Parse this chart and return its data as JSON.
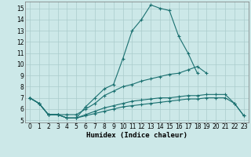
{
  "xlabel": "Humidex (Indice chaleur)",
  "bg_color": "#cce8e8",
  "grid_color": "#aacccc",
  "line_color": "#1a7070",
  "xlim": [
    -0.5,
    23.5
  ],
  "ylim": [
    4.8,
    15.6
  ],
  "yticks": [
    5,
    6,
    7,
    8,
    9,
    10,
    11,
    12,
    13,
    14,
    15
  ],
  "xticks": [
    0,
    1,
    2,
    3,
    4,
    5,
    6,
    7,
    8,
    9,
    10,
    11,
    12,
    13,
    14,
    15,
    16,
    17,
    18,
    19,
    20,
    21,
    22,
    23
  ],
  "line1": {
    "x": [
      0,
      1,
      2,
      3,
      4,
      5,
      6,
      7,
      8,
      9,
      10,
      11,
      12,
      13,
      14,
      15,
      16,
      17,
      18
    ],
    "y": [
      7.0,
      6.5,
      5.5,
      5.5,
      5.2,
      5.2,
      6.2,
      7.0,
      7.8,
      8.2,
      10.5,
      13.0,
      14.0,
      15.3,
      15.0,
      14.8,
      12.5,
      11.0,
      9.2
    ]
  },
  "line2": {
    "x": [
      0,
      1,
      2,
      3,
      4,
      5,
      6,
      7,
      8,
      9,
      10,
      11,
      12,
      13,
      14,
      15,
      16,
      17,
      18,
      19
    ],
    "y": [
      7.0,
      6.5,
      5.5,
      5.5,
      5.5,
      5.5,
      6.0,
      6.5,
      7.2,
      7.6,
      8.0,
      8.2,
      8.5,
      8.7,
      8.9,
      9.1,
      9.2,
      9.5,
      9.8,
      9.2
    ]
  },
  "line3": {
    "x": [
      0,
      1,
      2,
      3,
      4,
      5,
      6,
      7,
      8,
      9,
      10,
      11,
      12,
      13,
      14,
      15,
      16,
      17,
      18,
      19,
      20,
      21,
      22,
      23
    ],
    "y": [
      7.0,
      6.5,
      5.5,
      5.5,
      5.2,
      5.2,
      5.5,
      5.8,
      6.1,
      6.3,
      6.5,
      6.7,
      6.8,
      6.9,
      7.0,
      7.0,
      7.1,
      7.2,
      7.2,
      7.3,
      7.3,
      7.3,
      6.5,
      5.4
    ]
  },
  "line4": {
    "x": [
      0,
      1,
      2,
      3,
      4,
      5,
      6,
      7,
      8,
      9,
      10,
      11,
      12,
      13,
      14,
      15,
      16,
      17,
      18,
      19,
      20,
      21,
      22,
      23
    ],
    "y": [
      7.0,
      6.5,
      5.5,
      5.5,
      5.2,
      5.2,
      5.4,
      5.6,
      5.8,
      6.0,
      6.2,
      6.3,
      6.4,
      6.5,
      6.6,
      6.7,
      6.8,
      6.9,
      6.9,
      7.0,
      7.0,
      7.0,
      6.5,
      5.4
    ]
  }
}
